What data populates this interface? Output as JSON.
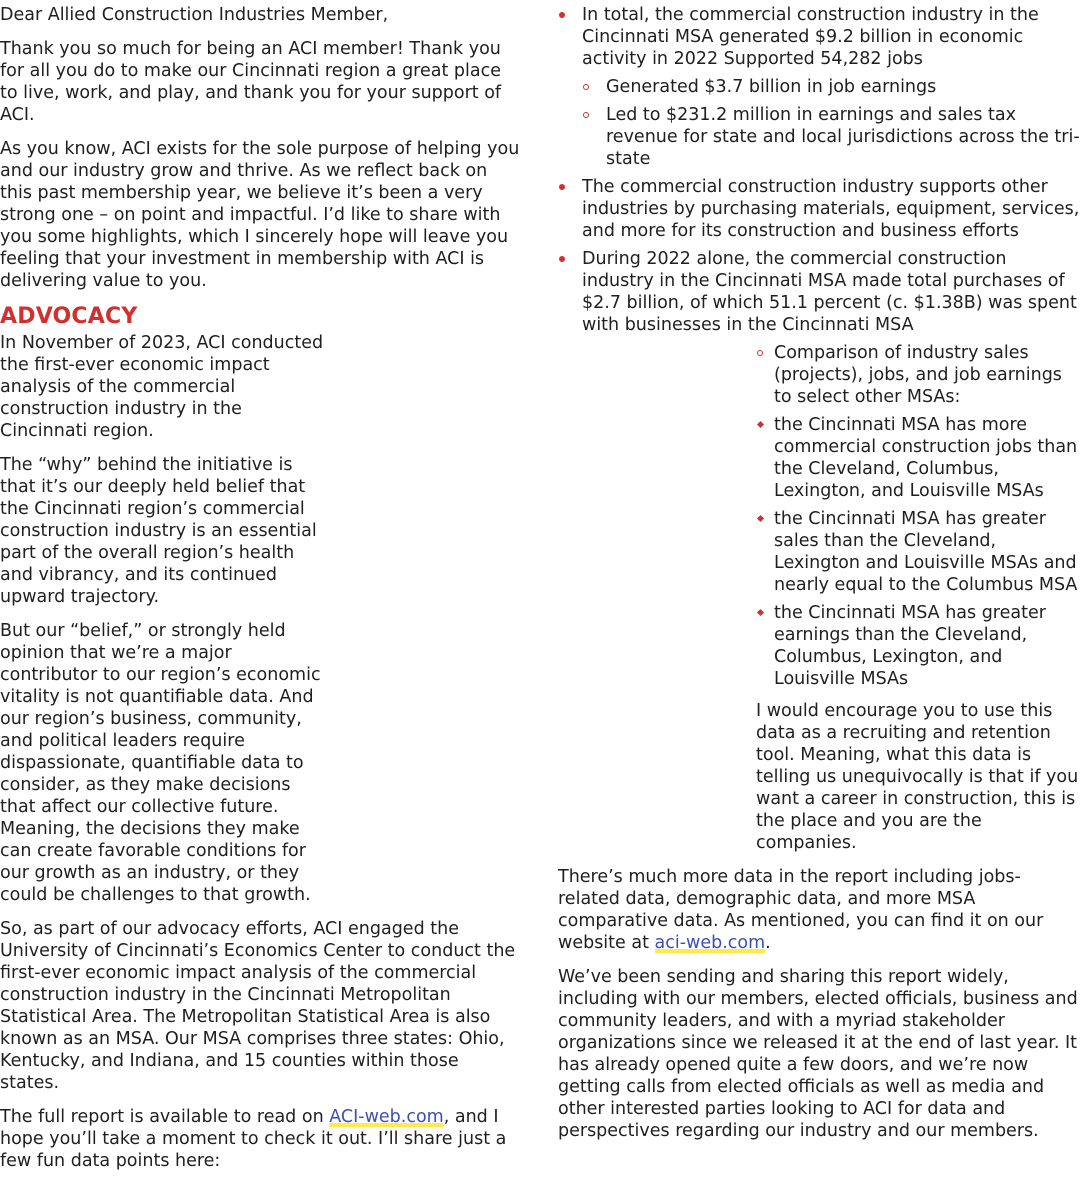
{
  "left": {
    "greeting": "Dear Allied Construction Industries Member,",
    "p1": "Thank you so much for being an ACI member! Thank you for all you do to make our Cincinnati region a great place to live, work, and play, and thank you for your support of ACI.",
    "p2": "As you know, ACI exists for the sole purpose of helping you and our industry grow and thrive. As we reflect back on this past membership year, we believe it’s been a very strong one – on point and impactful. I’d like to share with you some highlights, which I sincerely hope will leave you feeling that your investment in membership with ACI is delivering value to you.",
    "heading": "ADVOCACY",
    "p3": "In November of 2023, ACI conducted the first-ever economic impact analysis of the commercial construction industry in the Cincinnati region.",
    "p4": "The “why” behind the initiative is that it’s our deeply held belief that the Cincinnati region’s commercial construction industry is an essential part of the overall region’s health and vibrancy, and its continued upward trajectory.",
    "p5": "But our “belief,” or strongly held opinion that we’re a major contributor to our region’s economic vitality is not quantifiable data. And our region’s business, community, and political leaders require dispassionate, quantifiable data to consider, as they make decisions that affect our collective future. Meaning, the decisions they make can create favorable conditions for our growth as an industry, or they could be challenges to that growth.",
    "p6": "So, as part of our advocacy efforts, ACI engaged the University of Cincinnati’s Economics Center to conduct the first-ever economic impact analysis of the commercial construction industry in the Cincinnati Metropolitan Statistical Area. The Metropolitan Statistical Area is also known as an MSA. Our MSA comprises three states: Ohio, Kentucky, and Indiana, and 15 counties within those states.",
    "p7_before": "The full report is available to read on ",
    "p7_link": "ACI-web.com",
    "p7_after": ", and I hope you’ll take a moment to check it out. I’ll share just a few fun data points here:"
  },
  "right": {
    "bullet1": "In total, the commercial construction industry in the Cincinnati MSA generated $9.2 billion in economic activity in 2022 Supported 54,282 jobs",
    "bullet1_sub1": "Generated $3.7 billion in job earnings",
    "bullet1_sub2": "Led to $231.2 million in earnings and sales tax revenue for state and local jurisdictions across the tri-state",
    "bullet2": "The commercial construction industry supports other industries by purchasing materials, equipment, services, and more for its construction and business efforts",
    "bullet3": "During 2022 alone, the commercial construction industry in the Cincinnati MSA made total purchases of $2.7 billion, of which 51.1 percent (c. $1.38B) was spent with businesses in the Cincinnati MSA",
    "sub_comparison": "Comparison of industry sales (projects), jobs, and job earnings to select other MSAs:",
    "sub_jobs": "the Cincinnati MSA has more commercial construction jobs than the Cleveland, Columbus, Lexington, and Louisville MSAs",
    "sub_sales": "the Cincinnati MSA has greater sales than the Cleveland, Lexington and Louisville MSAs and nearly equal to the Columbus MSA",
    "sub_earnings": "the Cincinnati MSA has greater earnings than the Cleveland, Columbus, Lexington, and Louisville MSAs",
    "encourage": "I would encourage you to use this data as a recruiting and retention tool. Meaning, what this data is telling us unequivocally is that if you want a career in construction, this is the place and you are the companies.",
    "more_before": "There’s much more data in the report including jobs-related data, demographic data, and more MSA comparative data. As mentioned, you can find it on our website at ",
    "more_link": "aci-web.com",
    "more_after": ".",
    "sharing": "We’ve been sending and sharing this report widely, including with our members, elected officials, business and community leaders, and with a myriad stakeholder organizations since we released it at the end of last year. It has already opened quite a few doors, and we’re now getting calls from elected officials as well as media and other interested parties looking to ACI for data and perspectives regarding our industry and our members."
  },
  "colors": {
    "accent": "#d32f2f",
    "link": "#3a4fb8",
    "highlight": "#ffe94d"
  }
}
